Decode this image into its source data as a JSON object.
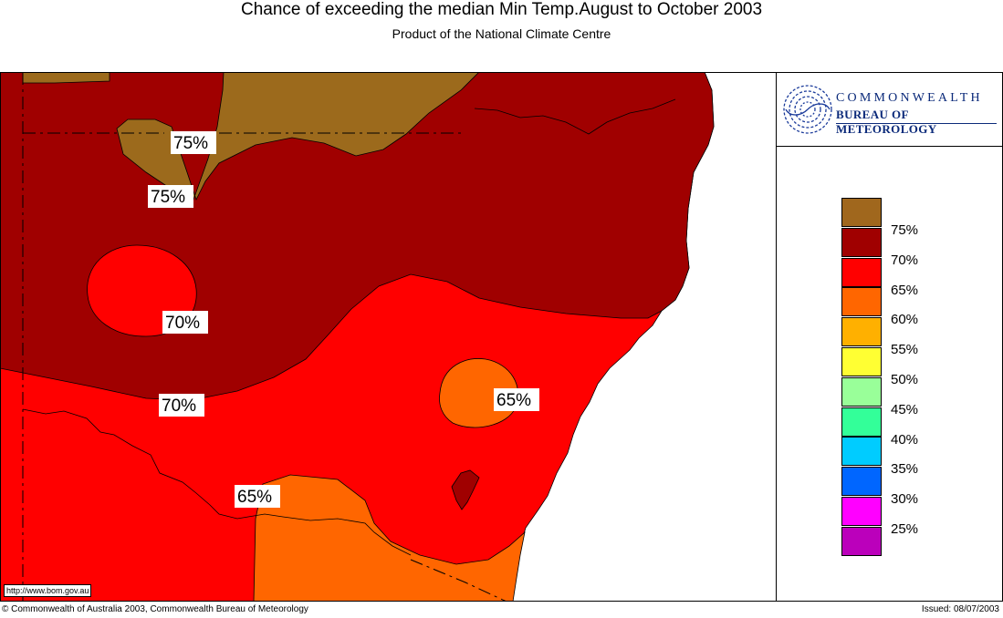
{
  "header": {
    "title": "Chance of exceeding the median Min Temp.August to October 2003",
    "subtitle": "Product of the National Climate Centre"
  },
  "logo": {
    "line1": "COMMONWEALTH",
    "line2": "BUREAU OF METEOROLOGY",
    "emblem": "swirl-emblem-icon"
  },
  "map": {
    "colors": {
      "75%": "#9c6a1c",
      "70%": "#a00000",
      "65%": "#ff0000",
      "60%": "#ff6600",
      "ocean": "#ffffff"
    },
    "contour_labels": [
      "75%",
      "75%",
      "70%",
      "70%",
      "65%",
      "65%"
    ]
  },
  "legend": {
    "items": [
      {
        "label": "75%",
        "color": "#a0671d"
      },
      {
        "label": "70%",
        "color": "#a00000"
      },
      {
        "label": "65%",
        "color": "#ff0000"
      },
      {
        "label": "60%",
        "color": "#ff6600"
      },
      {
        "label": "55%",
        "color": "#ffb000"
      },
      {
        "label": "50%",
        "color": "#ffff33"
      },
      {
        "label": "45%",
        "color": "#99ff99"
      },
      {
        "label": "40%",
        "color": "#33ff99"
      },
      {
        "label": "35%",
        "color": "#00ccff"
      },
      {
        "label": "30%",
        "color": "#0066ff"
      },
      {
        "label": "25%",
        "color": "#ff00ff"
      },
      {
        "label": "",
        "color": "#bb00bb"
      }
    ]
  },
  "footer": {
    "url": "http://www.bom.gov.au",
    "copyright": "© Commonwealth of Australia 2003, Commonwealth Bureau of Meteorology",
    "issued": "Issued: 08/07/2003"
  }
}
